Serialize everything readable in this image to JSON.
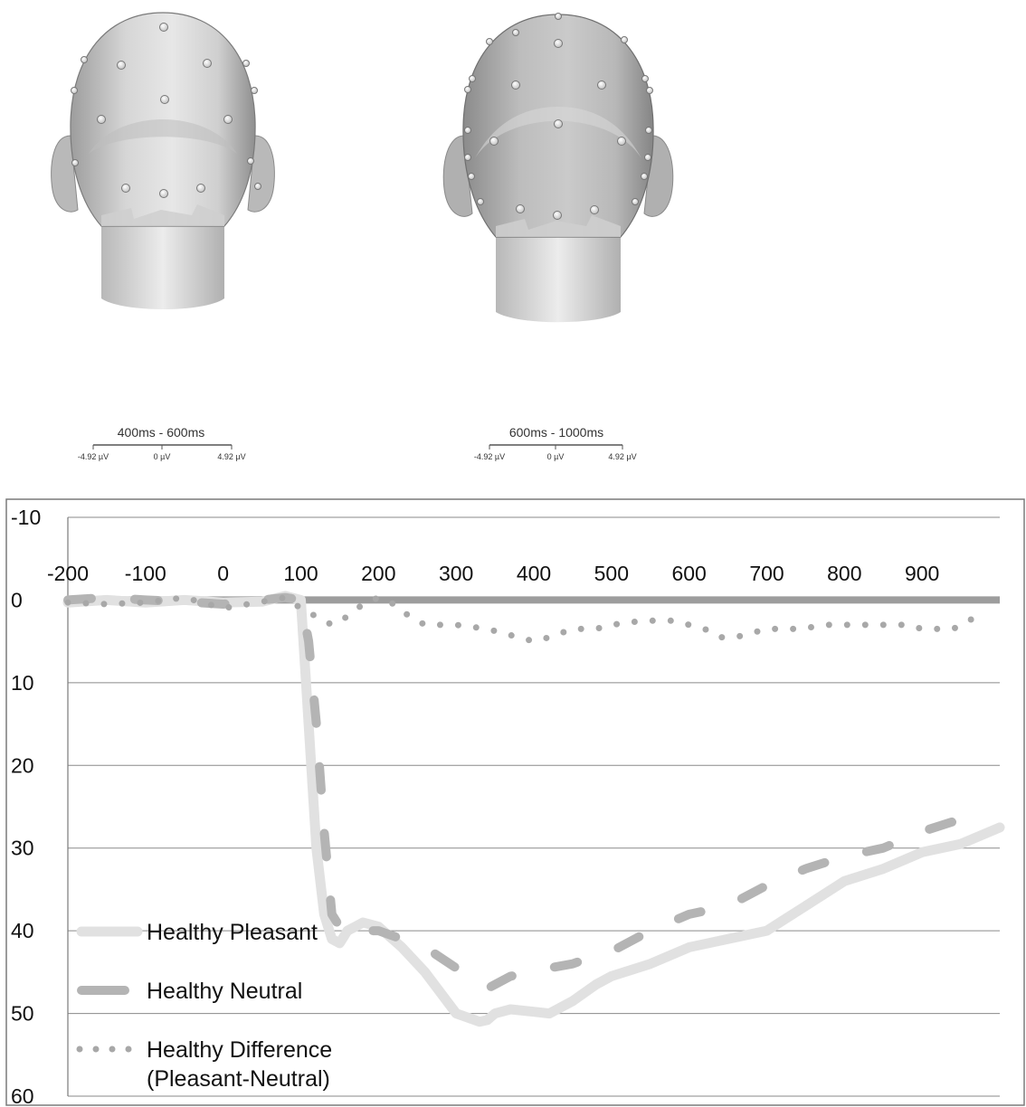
{
  "topomaps": [
    {
      "window_label": "400ms - 600ms",
      "scale_min": "-4.92 µV",
      "scale_mid": "0 µV",
      "scale_max": "4.92 µV"
    },
    {
      "window_label": "600ms - 1000ms",
      "scale_min": "-4.92 µV",
      "scale_mid": "0 µV",
      "scale_max": "4.92 µV"
    }
  ],
  "chart_data": {
    "type": "line",
    "title": "",
    "xlabel": "",
    "ylabel": "",
    "x_ticks": [
      -200,
      -100,
      0,
      100,
      200,
      300,
      400,
      500,
      600,
      700,
      800,
      900
    ],
    "y_ticks": [
      -10,
      0,
      10,
      20,
      30,
      40,
      50,
      60
    ],
    "xlim": [
      -200,
      1000
    ],
    "ylim": [
      -10,
      60
    ],
    "y_inverted": true,
    "grid": "horizontal",
    "legend_position": "bottom-left",
    "series": [
      {
        "name": "Healthy Pleasant",
        "style": "solid",
        "color": "#e1e1e1",
        "x": [
          -200,
          -150,
          -100,
          -50,
          0,
          50,
          80,
          100,
          110,
          120,
          130,
          140,
          150,
          160,
          170,
          180,
          200,
          230,
          260,
          300,
          330,
          340,
          350,
          370,
          400,
          420,
          450,
          480,
          500,
          550,
          600,
          650,
          700,
          750,
          800,
          850,
          900,
          950,
          1000
        ],
        "y": [
          0.3,
          0,
          0.3,
          0,
          0.3,
          0.2,
          -0.5,
          0,
          15,
          30,
          38,
          41,
          41.5,
          40,
          39.5,
          39,
          39.5,
          42,
          45,
          50,
          51,
          50.8,
          50,
          49.5,
          49.8,
          50,
          48.5,
          46.5,
          45.5,
          44,
          42,
          41,
          40,
          37,
          34,
          32.5,
          30.5,
          29.5,
          27.5
        ]
      },
      {
        "name": "Healthy Neutral",
        "style": "dashed",
        "color": "#b4b4b4",
        "x": [
          -200,
          -150,
          -100,
          -50,
          0,
          50,
          80,
          100,
          110,
          120,
          130,
          140,
          150,
          160,
          170,
          180,
          200,
          230,
          260,
          300,
          330,
          340,
          350,
          370,
          400,
          420,
          450,
          480,
          500,
          550,
          600,
          650,
          700,
          750,
          800,
          850,
          900,
          950
        ],
        "y": [
          0,
          -0.3,
          0,
          0.2,
          0.5,
          0,
          -0.3,
          0,
          5,
          15,
          28,
          38,
          39.5,
          40.5,
          40.5,
          40,
          40,
          41,
          42,
          44.5,
          46.5,
          47,
          46.5,
          45.5,
          45,
          44.5,
          44,
          43,
          42.5,
          40,
          38,
          37,
          34.5,
          32.5,
          31,
          30,
          28,
          26.5
        ]
      },
      {
        "name": "Healthy Difference (Pleasant-Neutral)",
        "style": "dotted",
        "color": "#a8a8a8",
        "x": [
          -200,
          -150,
          -100,
          -50,
          0,
          50,
          80,
          100,
          120,
          140,
          160,
          180,
          200,
          220,
          240,
          260,
          300,
          340,
          360,
          380,
          400,
          420,
          450,
          480,
          500,
          540,
          580,
          600,
          620,
          640,
          660,
          680,
          700,
          740,
          780,
          800,
          840,
          880,
          900,
          940,
          960,
          980
        ],
        "y": [
          0.3,
          0.5,
          0.3,
          -0.3,
          1.0,
          0.2,
          -0.3,
          1.0,
          2.0,
          3.0,
          2.0,
          0.5,
          -0.3,
          0.5,
          2.0,
          3.0,
          3.0,
          3.5,
          4.0,
          4.5,
          5.0,
          4.5,
          3.5,
          3.5,
          3.0,
          2.5,
          2.5,
          3.0,
          3.5,
          4.5,
          4.5,
          4.0,
          3.5,
          3.5,
          3.0,
          3.0,
          3.0,
          3.0,
          3.5,
          3.5,
          2.5,
          1.5
        ]
      }
    ]
  }
}
